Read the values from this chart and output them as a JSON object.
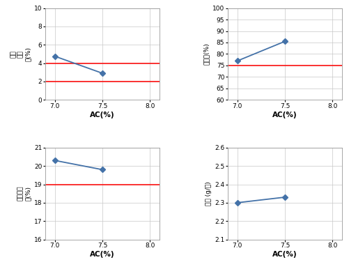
{
  "x_data": [
    7.0,
    7.5
  ],
  "x_lim": [
    6.9,
    8.1
  ],
  "x_ticks": [
    7.0,
    7.5,
    8.0
  ],
  "xlabel": "AC(%)",
  "plot1": {
    "y_data": [
      4.75,
      2.9
    ],
    "y_lim": [
      0,
      10
    ],
    "y_ticks": [
      0,
      2,
      4,
      6,
      8,
      10
    ],
    "ylabel": "배합\n공극\n률(%)",
    "hlines": [
      2.0,
      4.0
    ],
    "hline_color": "#ff0000"
  },
  "plot2": {
    "y_data": [
      77.0,
      85.5
    ],
    "y_lim": [
      60,
      100
    ],
    "y_ticks": [
      60,
      65,
      70,
      75,
      80,
      85,
      90,
      95,
      100
    ],
    "ylabel": "포화도(%)",
    "hlines": [
      75.0
    ],
    "hline_color": "#ff0000"
  },
  "plot3": {
    "y_data": [
      20.3,
      19.8
    ],
    "y_lim": [
      16,
      21
    ],
    "y_ticks": [
      16,
      17,
      18,
      19,
      20,
      21
    ],
    "ylabel": "골재간극\n률(%)",
    "hlines": [
      19.0
    ],
    "hline_color": "#ff0000"
  },
  "plot4": {
    "y_data": [
      2.3,
      2.33
    ],
    "y_lim": [
      2.1,
      2.6
    ],
    "y_ticks": [
      2.1,
      2.2,
      2.3,
      2.4,
      2.5,
      2.6
    ],
    "ylabel": "밀도 (g/㎤)",
    "hlines": [],
    "hline_color": "#ff0000"
  },
  "line_color": "#4472a8",
  "marker": "D",
  "marker_color": "#4472a8",
  "marker_size": 4,
  "line_width": 1.3,
  "bg_color": "#ffffff",
  "grid_color": "#c8c8c8",
  "tick_fontsize": 6.5,
  "xlabel_fontsize": 7.5,
  "ylabel_fontsize": 6.5
}
